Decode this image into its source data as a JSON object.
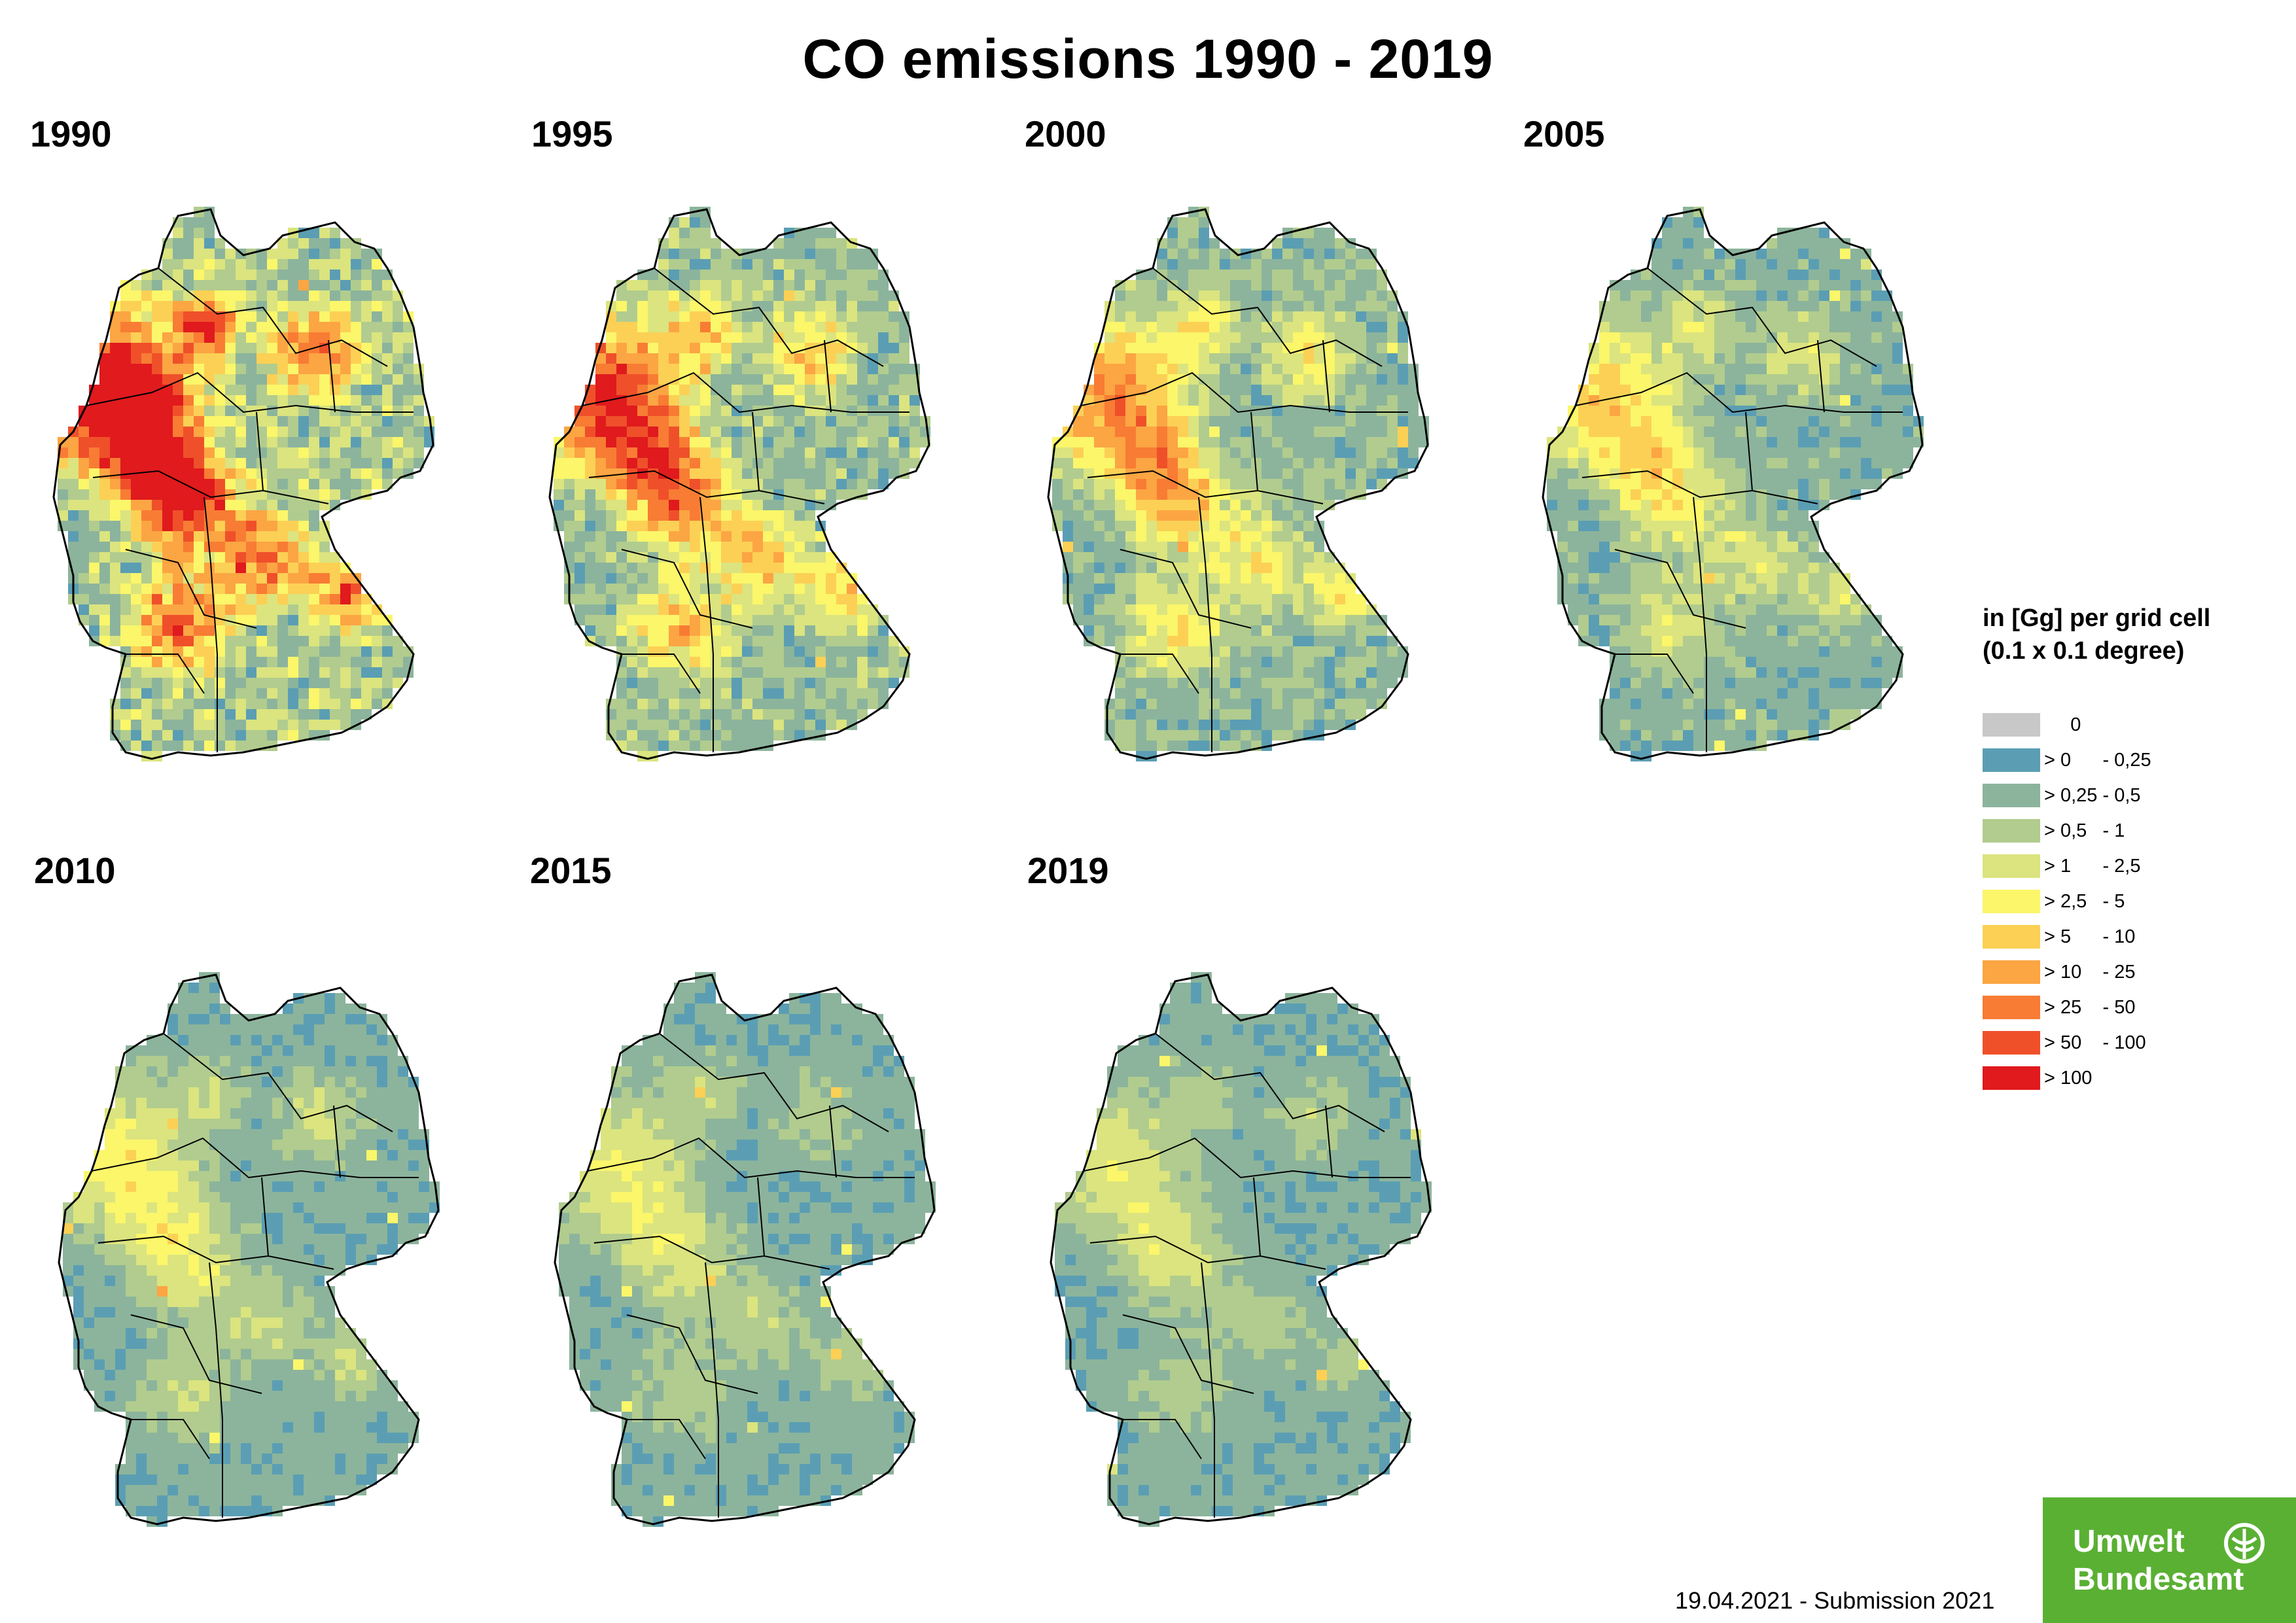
{
  "title": "CO emissions 1990 - 2019",
  "panels": [
    {
      "year": "1990",
      "intensity": 0.85
    },
    {
      "year": "1995",
      "intensity": 0.62
    },
    {
      "year": "2000",
      "intensity": 0.48
    },
    {
      "year": "2005",
      "intensity": 0.35
    },
    {
      "year": "2010",
      "intensity": 0.28
    },
    {
      "year": "2015",
      "intensity": 0.24
    },
    {
      "year": "2019",
      "intensity": 0.22
    }
  ],
  "legend": {
    "title": "in [Gg] per grid cell (0.1 x 0.1 degree)",
    "classes": [
      {
        "label": "     0",
        "color": "#c8c8c8"
      },
      {
        "label": "> 0      - 0,25",
        "color": "#5b9eb3"
      },
      {
        "label": "> 0,25 - 0,5",
        "color": "#8cb49c"
      },
      {
        "label": "> 0,5   - 1",
        "color": "#b1cc8e"
      },
      {
        "label": "> 1      - 2,5",
        "color": "#dbe47f"
      },
      {
        "label": "> 2,5   - 5",
        "color": "#fbf66a"
      },
      {
        "label": "> 5      - 10",
        "color": "#fcd055"
      },
      {
        "label": "> 10    - 25",
        "color": "#fca543"
      },
      {
        "label": "> 25    - 50",
        "color": "#f87c34"
      },
      {
        "label": "> 50    - 100",
        "color": "#ef502a"
      },
      {
        "label": "> 100",
        "color": "#e01a1d"
      }
    ]
  },
  "footer": "19.04.2021 - Submission 2021",
  "logo": {
    "line1": "Umwelt",
    "line2": "Bundesamt"
  }
}
